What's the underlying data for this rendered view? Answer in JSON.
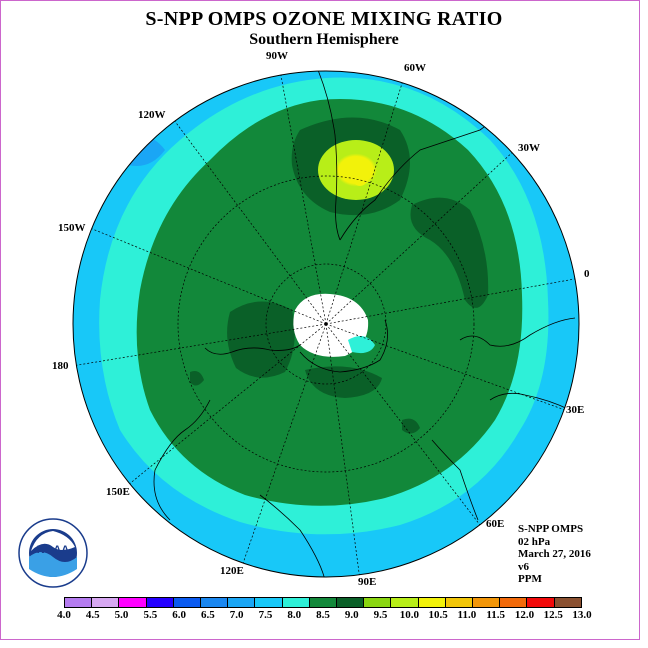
{
  "header": {
    "title": "S-NPP OMPS OZONE MIXING RATIO",
    "subtitle": "Southern Hemisphere"
  },
  "longitude_labels": {
    "lon_90w": "90W",
    "lon_60w": "60W",
    "lon_30w": "30W",
    "lon_0": "0",
    "lon_30e": "30E",
    "lon_60e": "60E",
    "lon_90e": "90E",
    "lon_120e": "120E",
    "lon_150e": "150E",
    "lon_180": "180",
    "lon_150w": "150W",
    "lon_120w": "120W"
  },
  "info": {
    "instrument": "S-NPP OMPS",
    "level": "02 hPa",
    "date": "March 27, 2016",
    "version": "v6",
    "units": "PPM"
  },
  "legend": {
    "ticks": [
      "4.0",
      "4.5",
      "5.0",
      "5.5",
      "6.0",
      "6.5",
      "7.0",
      "7.5",
      "8.0",
      "8.5",
      "9.0",
      "9.5",
      "10.0",
      "10.5",
      "11.0",
      "11.5",
      "12.0",
      "12.5",
      "13.0"
    ],
    "colors": [
      "#b57cf0",
      "#d7a8f2",
      "#ff00ff",
      "#2400ff",
      "#0a5af0",
      "#1a87f0",
      "#1aa6f5",
      "#18c8f8",
      "#2ef0d8",
      "#12883a",
      "#0a6028",
      "#8ad610",
      "#b8ee18",
      "#f2f20a",
      "#f2c608",
      "#f29608",
      "#f26a0a",
      "#f20a0a",
      "#8a5030"
    ]
  },
  "logo": {
    "text": "NOAA"
  }
}
